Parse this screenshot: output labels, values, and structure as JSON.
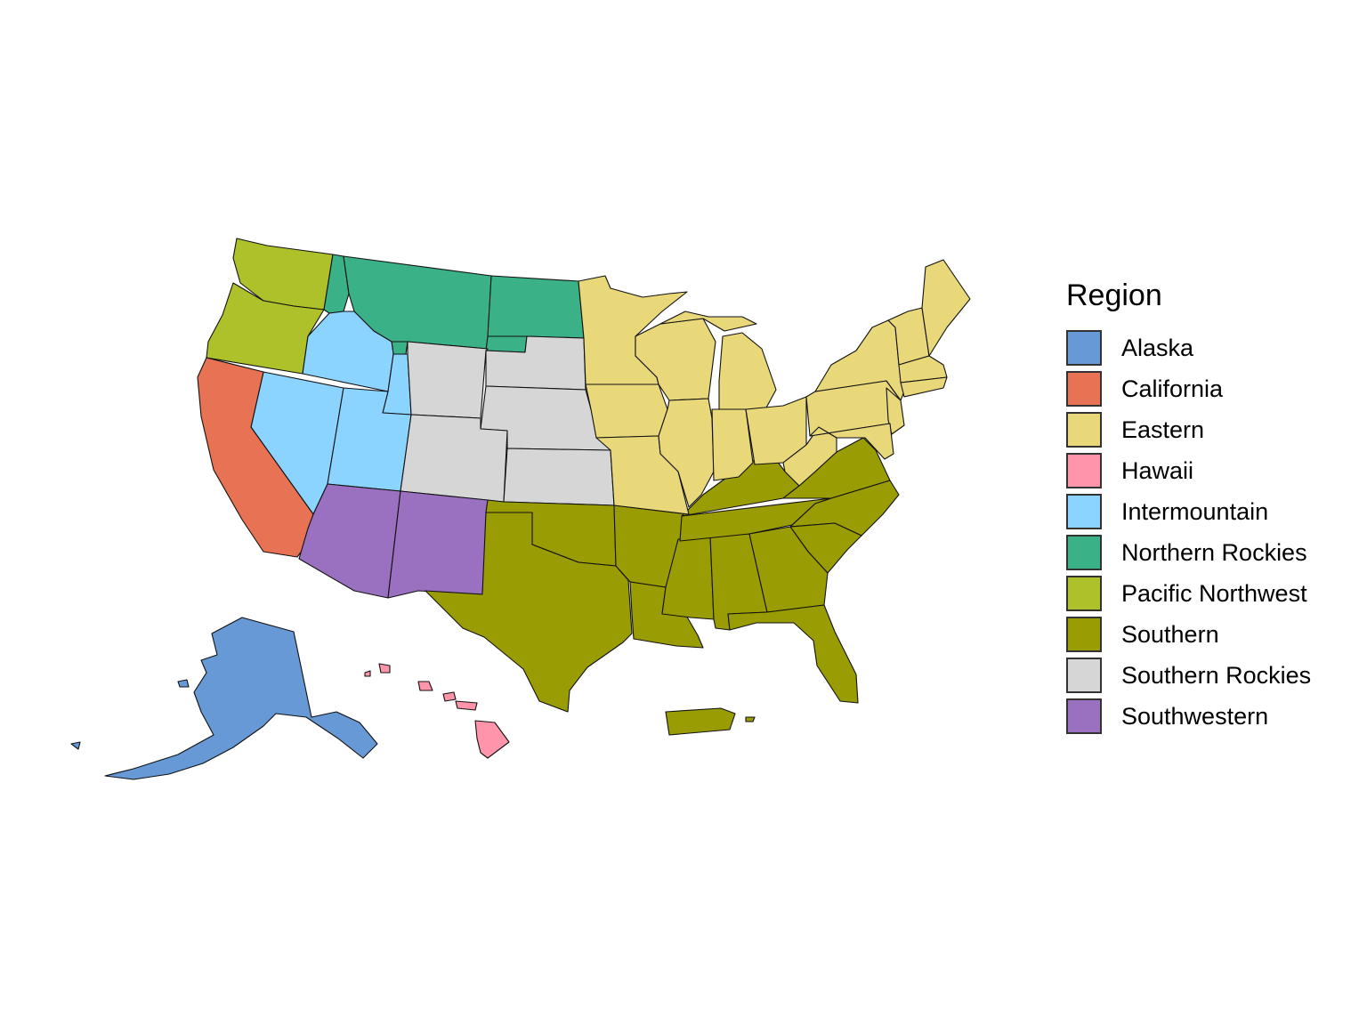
{
  "legend": {
    "title": "Region",
    "entries": [
      {
        "label": "Alaska",
        "color": "#6699D6"
      },
      {
        "label": "California",
        "color": "#E87354"
      },
      {
        "label": "Eastern",
        "color": "#E8D87A"
      },
      {
        "label": "Hawaii",
        "color": "#FF94AA"
      },
      {
        "label": "Intermountain",
        "color": "#8AD4FF"
      },
      {
        "label": "Northern Rockies",
        "color": "#3AB187"
      },
      {
        "label": "Pacific Northwest",
        "color": "#AEC12A"
      },
      {
        "label": "Southern",
        "color": "#9A9C03"
      },
      {
        "label": "Southern Rockies",
        "color": "#D6D6D6"
      },
      {
        "label": "Southwestern",
        "color": "#9A70C0"
      }
    ]
  },
  "map": {
    "stroke_color": "#111111",
    "background": "#FFFFFF"
  }
}
